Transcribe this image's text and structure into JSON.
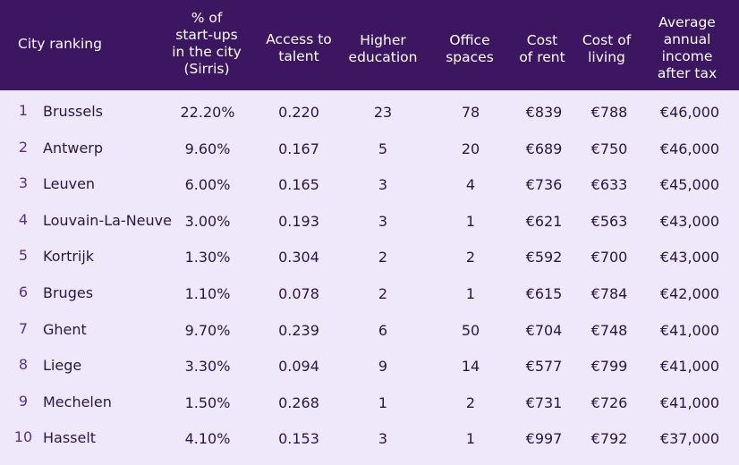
{
  "chart_data": {
    "type": "table",
    "header": {
      "city_ranking": "City ranking",
      "startups": "% of\nstart-ups\nin the city\n(Sirris)",
      "access": "Access to\ntalent",
      "education": "Higher\neducation",
      "office": "Office\nspaces",
      "rent": "Cost\nof rent",
      "living": "Cost of\nliving",
      "income": "Average\nannual\nincome\nafter tax"
    },
    "rows": [
      {
        "rank": "1",
        "city": "Brussels",
        "startups": "22.20%",
        "access": "0.220",
        "education": "23",
        "office": "78",
        "rent": "€839",
        "living": "€788",
        "income": "€46,000"
      },
      {
        "rank": "2",
        "city": "Antwerp",
        "startups": "9.60%",
        "access": "0.167",
        "education": "5",
        "office": "20",
        "rent": "€689",
        "living": "€750",
        "income": "€46,000"
      },
      {
        "rank": "3",
        "city": "Leuven",
        "startups": "6.00%",
        "access": "0.165",
        "education": "3",
        "office": "4",
        "rent": "€736",
        "living": "€633",
        "income": "€45,000"
      },
      {
        "rank": "4",
        "city": "Louvain-La-Neuve",
        "startups": "3.00%",
        "access": "0.193",
        "education": "3",
        "office": "1",
        "rent": "€621",
        "living": "€563",
        "income": "€43,000"
      },
      {
        "rank": "5",
        "city": "Kortrijk",
        "startups": "1.30%",
        "access": "0.304",
        "education": "2",
        "office": "2",
        "rent": "€592",
        "living": "€700",
        "income": "€43,000"
      },
      {
        "rank": "6",
        "city": "Bruges",
        "startups": "1.10%",
        "access": "0.078",
        "education": "2",
        "office": "1",
        "rent": "€615",
        "living": "€784",
        "income": "€42,000"
      },
      {
        "rank": "7",
        "city": "Ghent",
        "startups": "9.70%",
        "access": "0.239",
        "education": "6",
        "office": "50",
        "rent": "€704",
        "living": "€748",
        "income": "€41,000"
      },
      {
        "rank": "8",
        "city": "Liege",
        "startups": "3.30%",
        "access": "0.094",
        "education": "9",
        "office": "14",
        "rent": "€577",
        "living": "€799",
        "income": "€41,000"
      },
      {
        "rank": "9",
        "city": "Mechelen",
        "startups": "1.50%",
        "access": "0.268",
        "education": "1",
        "office": "2",
        "rent": "€731",
        "living": "€726",
        "income": "€41,000"
      },
      {
        "rank": "10",
        "city": "Hasselt",
        "startups": "4.10%",
        "access": "0.153",
        "education": "3",
        "office": "1",
        "rent": "€997",
        "living": "€792",
        "income": "€37,000"
      }
    ],
    "colors": {
      "header_bg": "#3c1661",
      "header_text": "#ffffff",
      "body_bg": "#efe8fa",
      "rank_color": "#5a2f91",
      "text": "#2a1645"
    }
  }
}
